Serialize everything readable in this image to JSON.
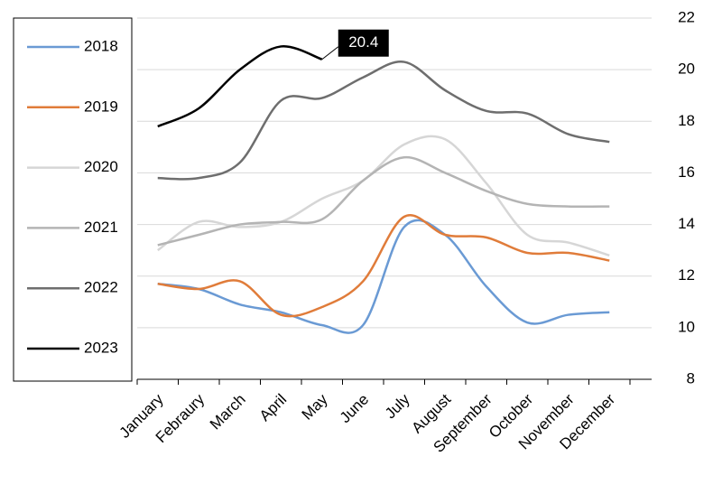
{
  "chart_data": {
    "type": "line",
    "categories": [
      "January",
      "Febraury",
      "March",
      "April",
      "May",
      "June",
      "July",
      "August",
      "September",
      "October",
      "November",
      "December"
    ],
    "series": [
      {
        "name": "2018",
        "color": "#6a9ad4",
        "values": [
          11.7,
          11.5,
          10.9,
          10.6,
          10.1,
          10.1,
          13.9,
          13.6,
          11.6,
          10.2,
          10.5,
          10.6
        ]
      },
      {
        "name": "2019",
        "color": "#e07c3a",
        "values": [
          11.7,
          11.5,
          11.8,
          10.5,
          10.8,
          11.8,
          14.3,
          13.6,
          13.5,
          12.9,
          12.9,
          12.6
        ]
      },
      {
        "name": "2020",
        "color": "#d6d6d6",
        "values": [
          13.0,
          14.1,
          13.9,
          14.1,
          15.0,
          15.7,
          17.1,
          17.3,
          15.6,
          13.6,
          13.3,
          12.8
        ]
      },
      {
        "name": "2021",
        "color": "#b4b4b4",
        "values": [
          13.2,
          13.6,
          14.0,
          14.1,
          14.2,
          15.7,
          16.6,
          16.0,
          15.3,
          14.8,
          14.7,
          14.7
        ]
      },
      {
        "name": "2022",
        "color": "#6e6e6e",
        "values": [
          15.8,
          15.8,
          16.4,
          18.8,
          18.9,
          19.7,
          20.3,
          19.2,
          18.4,
          18.3,
          17.5,
          17.2
        ]
      },
      {
        "name": "2023",
        "color": "#000000",
        "values": [
          17.8,
          18.5,
          20.0,
          20.9,
          20.4,
          null,
          null,
          null,
          null,
          null,
          null,
          null
        ],
        "value_labels": [
          null,
          null,
          null,
          null,
          "20.4",
          null,
          null,
          null,
          null,
          null,
          null,
          null
        ]
      }
    ],
    "ylim": [
      8,
      22
    ],
    "yticks": [
      8,
      10,
      12,
      14,
      16,
      18,
      20,
      22
    ],
    "grid": true,
    "y_axis_side": "right",
    "legend": "left"
  }
}
